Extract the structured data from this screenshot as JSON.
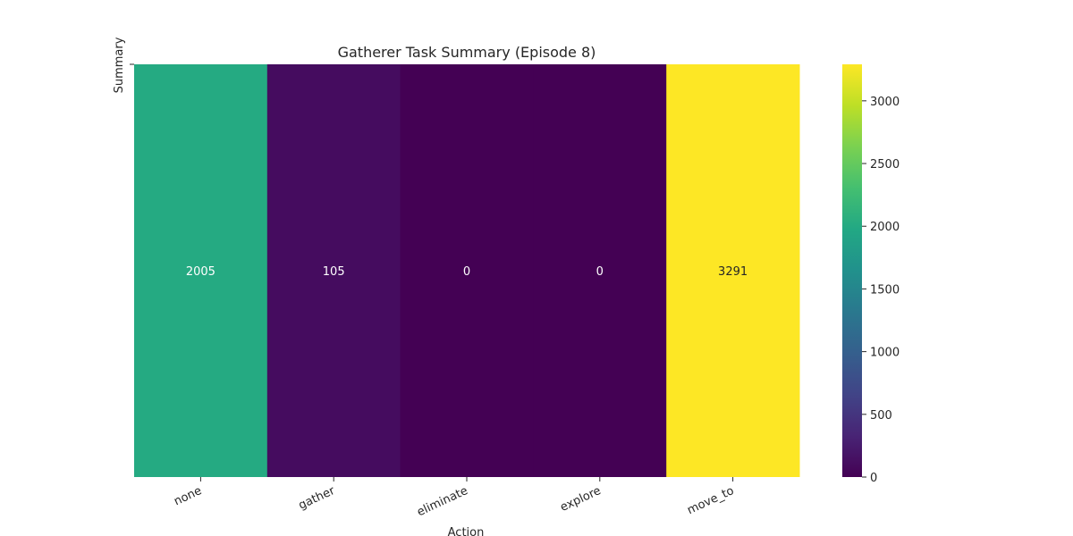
{
  "chart_data": {
    "type": "heatmap",
    "title": "Gatherer Task Summary (Episode 8)",
    "xlabel": "Action",
    "ylabel": "Summary",
    "categories": [
      "none",
      "gather",
      "eliminate",
      "explore",
      "move_to"
    ],
    "values": [
      2005,
      105,
      0,
      0,
      3291
    ],
    "value_range": [
      0,
      3291
    ],
    "colormap": "viridis",
    "colorbar_ticks": [
      0,
      500,
      1000,
      1500,
      2000,
      2500,
      3000
    ],
    "annotations": true,
    "grid": false,
    "legend": "colorbar-right"
  }
}
